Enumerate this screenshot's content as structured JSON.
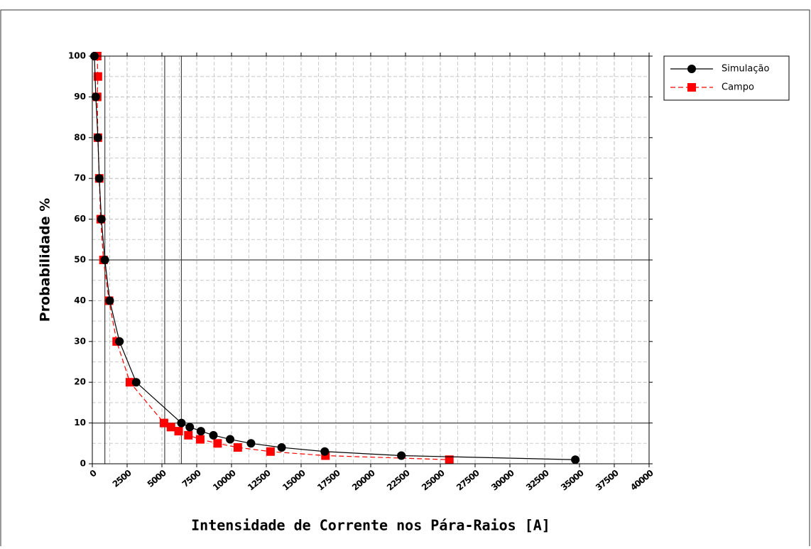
{
  "chart_data": {
    "type": "line",
    "xlabel": "Intensidade de Corrente nos Pára-Raios [A]",
    "ylabel": "Probabilidade %",
    "xlim": [
      0,
      40000
    ],
    "ylim": [
      0,
      100
    ],
    "xticks": [
      0,
      2500,
      5000,
      7500,
      10000,
      12500,
      15000,
      17500,
      20000,
      22500,
      25000,
      27500,
      30000,
      32500,
      35000,
      37500,
      40000
    ],
    "yticks": [
      0,
      10,
      20,
      30,
      40,
      50,
      60,
      70,
      80,
      90,
      100
    ],
    "grid": true,
    "reference_x": [
      900,
      5200,
      6400
    ],
    "reference_y": [
      10,
      50
    ],
    "legend": "outside-top-right",
    "series": [
      {
        "name": "Simulação",
        "color": "#000000",
        "marker": "circle",
        "dash": false,
        "x": [
          150,
          250,
          400,
          500,
          650,
          900,
          1250,
          1950,
          3150,
          6400,
          7000,
          7800,
          8700,
          9900,
          11400,
          13600,
          16700,
          22200,
          34700
        ],
        "values": [
          100,
          90,
          80,
          70,
          60,
          50,
          40,
          30,
          20,
          10,
          9,
          8,
          7,
          6,
          5,
          4,
          3,
          2,
          1
        ]
      },
      {
        "name": "Campo",
        "color": "#ff0000",
        "marker": "square",
        "dash": true,
        "x": [
          350,
          400,
          350,
          400,
          500,
          600,
          800,
          1200,
          1750,
          2700,
          5150,
          5650,
          6200,
          6900,
          7750,
          9000,
          10450,
          12800,
          16750,
          25650
        ],
        "values": [
          100,
          95,
          90,
          80,
          70,
          60,
          50,
          40,
          30,
          20,
          10,
          9,
          8,
          7,
          6,
          5,
          4,
          3,
          2,
          1
        ]
      }
    ]
  }
}
